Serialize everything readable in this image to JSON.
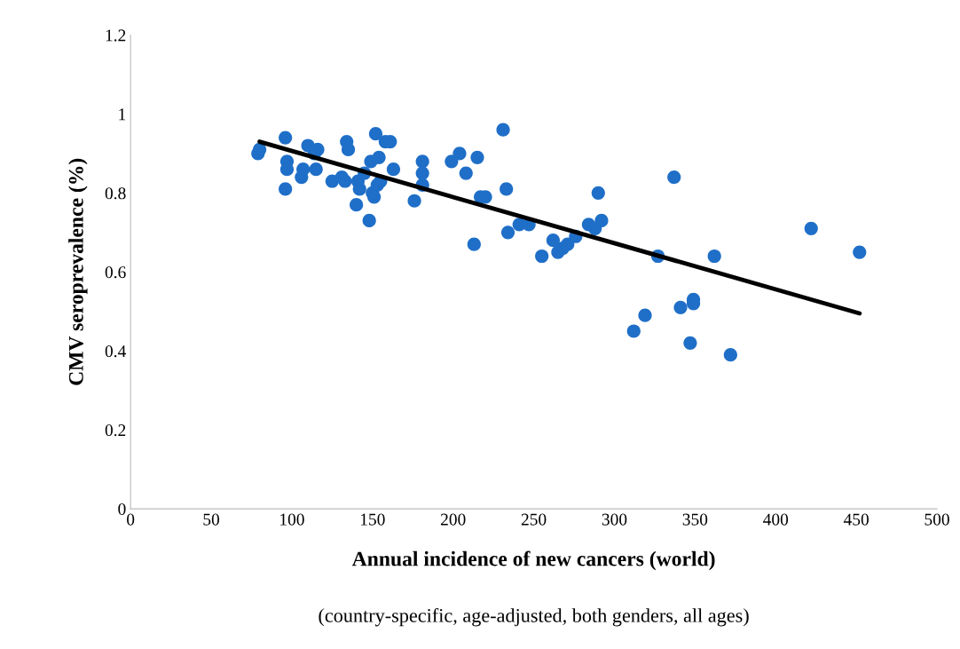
{
  "chart_data": {
    "type": "scatter",
    "xlabel": "Annual incidence of new cancers (world)",
    "ylabel": "CMV seroprevalence (%)",
    "annotations": [
      "(country-specific, age-adjusted, both genders, all ages)"
    ],
    "xlim": [
      0,
      500
    ],
    "xticks": [
      0,
      50,
      100,
      150,
      200,
      250,
      300,
      350,
      400,
      450,
      500
    ],
    "ylim": [
      0,
      1.2
    ],
    "yticks": [
      0,
      0.2,
      0.4,
      0.6,
      0.8,
      1,
      1.2
    ],
    "grid": false,
    "marker": "circle",
    "series": [
      {
        "color": "#1f6fc8",
        "x": [
          79,
          80,
          96,
          97,
          97,
          96,
          106,
          107,
          110,
          114,
          115,
          116,
          125,
          131,
          133,
          134,
          135,
          140,
          141,
          142,
          145,
          148,
          149,
          150,
          151,
          152,
          153,
          154,
          155,
          158,
          161,
          163,
          176,
          181,
          181,
          181,
          199,
          204,
          208,
          213,
          215,
          217,
          220,
          231,
          233,
          234,
          241,
          247,
          255,
          262,
          265,
          268,
          271,
          276,
          284,
          288,
          290,
          292,
          312,
          319,
          327,
          337,
          341,
          347,
          349,
          349,
          362,
          372,
          422,
          452
        ],
        "values": [
          0.9,
          0.91,
          0.94,
          0.88,
          0.86,
          0.81,
          0.84,
          0.86,
          0.92,
          0.9,
          0.86,
          0.91,
          0.83,
          0.84,
          0.83,
          0.93,
          0.91,
          0.77,
          0.83,
          0.81,
          0.85,
          0.73,
          0.88,
          0.8,
          0.79,
          0.95,
          0.82,
          0.89,
          0.83,
          0.93,
          0.93,
          0.86,
          0.78,
          0.88,
          0.85,
          0.82,
          0.88,
          0.9,
          0.85,
          0.67,
          0.89,
          0.79,
          0.79,
          0.96,
          0.81,
          0.7,
          0.72,
          0.72,
          0.64,
          0.68,
          0.65,
          0.66,
          0.67,
          0.69,
          0.72,
          0.71,
          0.8,
          0.73,
          0.45,
          0.49,
          0.64,
          0.84,
          0.51,
          0.42,
          0.53,
          0.52,
          0.64,
          0.39,
          0.71,
          0.65
        ]
      },
      {
        "type": "line",
        "color": "#000000",
        "marker": "none",
        "line_style": "solid",
        "x": [
          80,
          452
        ],
        "values": [
          0.93,
          0.495
        ]
      }
    ]
  }
}
